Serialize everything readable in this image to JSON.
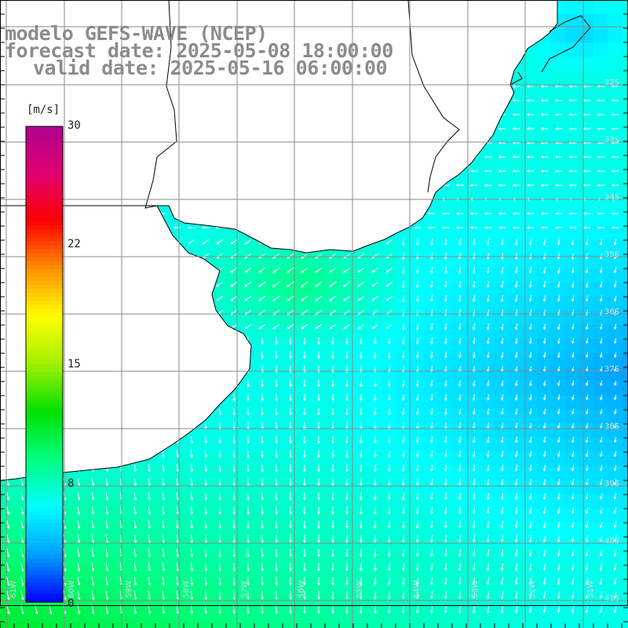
{
  "title": {
    "line1": "modelo GEFS-WAVE (NCEP)",
    "line2": "forecast date: 2025-05-08 18:00:00",
    "line3": "valid date: 2025-05-16 06:00:00"
  },
  "colorbar": {
    "unit_label": "[m/s]",
    "ticks": [
      "30",
      "22",
      "15",
      "8",
      "0"
    ],
    "tick_values": [
      30,
      22,
      15,
      8,
      0
    ],
    "range": [
      0,
      30
    ],
    "colors": [
      "#0000ff",
      "#00a0ff",
      "#00ffff",
      "#00ff80",
      "#00e000",
      "#a0f000",
      "#ffff00",
      "#ff9000",
      "#ff0000",
      "#e00070",
      "#b00090"
    ]
  },
  "map": {
    "lat_labels": [
      "32S",
      "33S",
      "34S",
      "35S",
      "36S",
      "37S",
      "38S",
      "39S",
      "40S",
      "41S"
    ],
    "lon_labels": [
      "61W",
      "60W",
      "59W",
      "58W",
      "57W",
      "56W",
      "55W",
      "54W",
      "53W",
      "52W",
      "51W"
    ],
    "land_color": "#ffffff",
    "grid_color": "#808080",
    "arrow_color": "#ffffff"
  },
  "chart_data": {
    "type": "heatmap",
    "variable": "wind speed",
    "unit": "m/s",
    "colorbar_range": [
      0,
      30
    ],
    "colorbar_ticks": [
      0,
      8,
      15,
      22,
      30
    ],
    "regions": [
      {
        "area": "south-west (lat 39S-41S, lon 61W-58W)",
        "speed_ms": 11,
        "direction": "toward south"
      },
      {
        "area": "Rio de la Plata estuary",
        "speed_ms": 9,
        "direction": "toward south-west"
      },
      {
        "area": "central offshore (37S, 54W)",
        "speed_ms": 6,
        "direction": "toward south"
      },
      {
        "area": "eastern offshore (37.5S, 51.5W)",
        "speed_ms": 3,
        "direction": "toward south"
      },
      {
        "area": "north-east coast (32S-35S, 53W-51W)",
        "speed_ms": 6.5,
        "direction": "toward west"
      }
    ]
  }
}
